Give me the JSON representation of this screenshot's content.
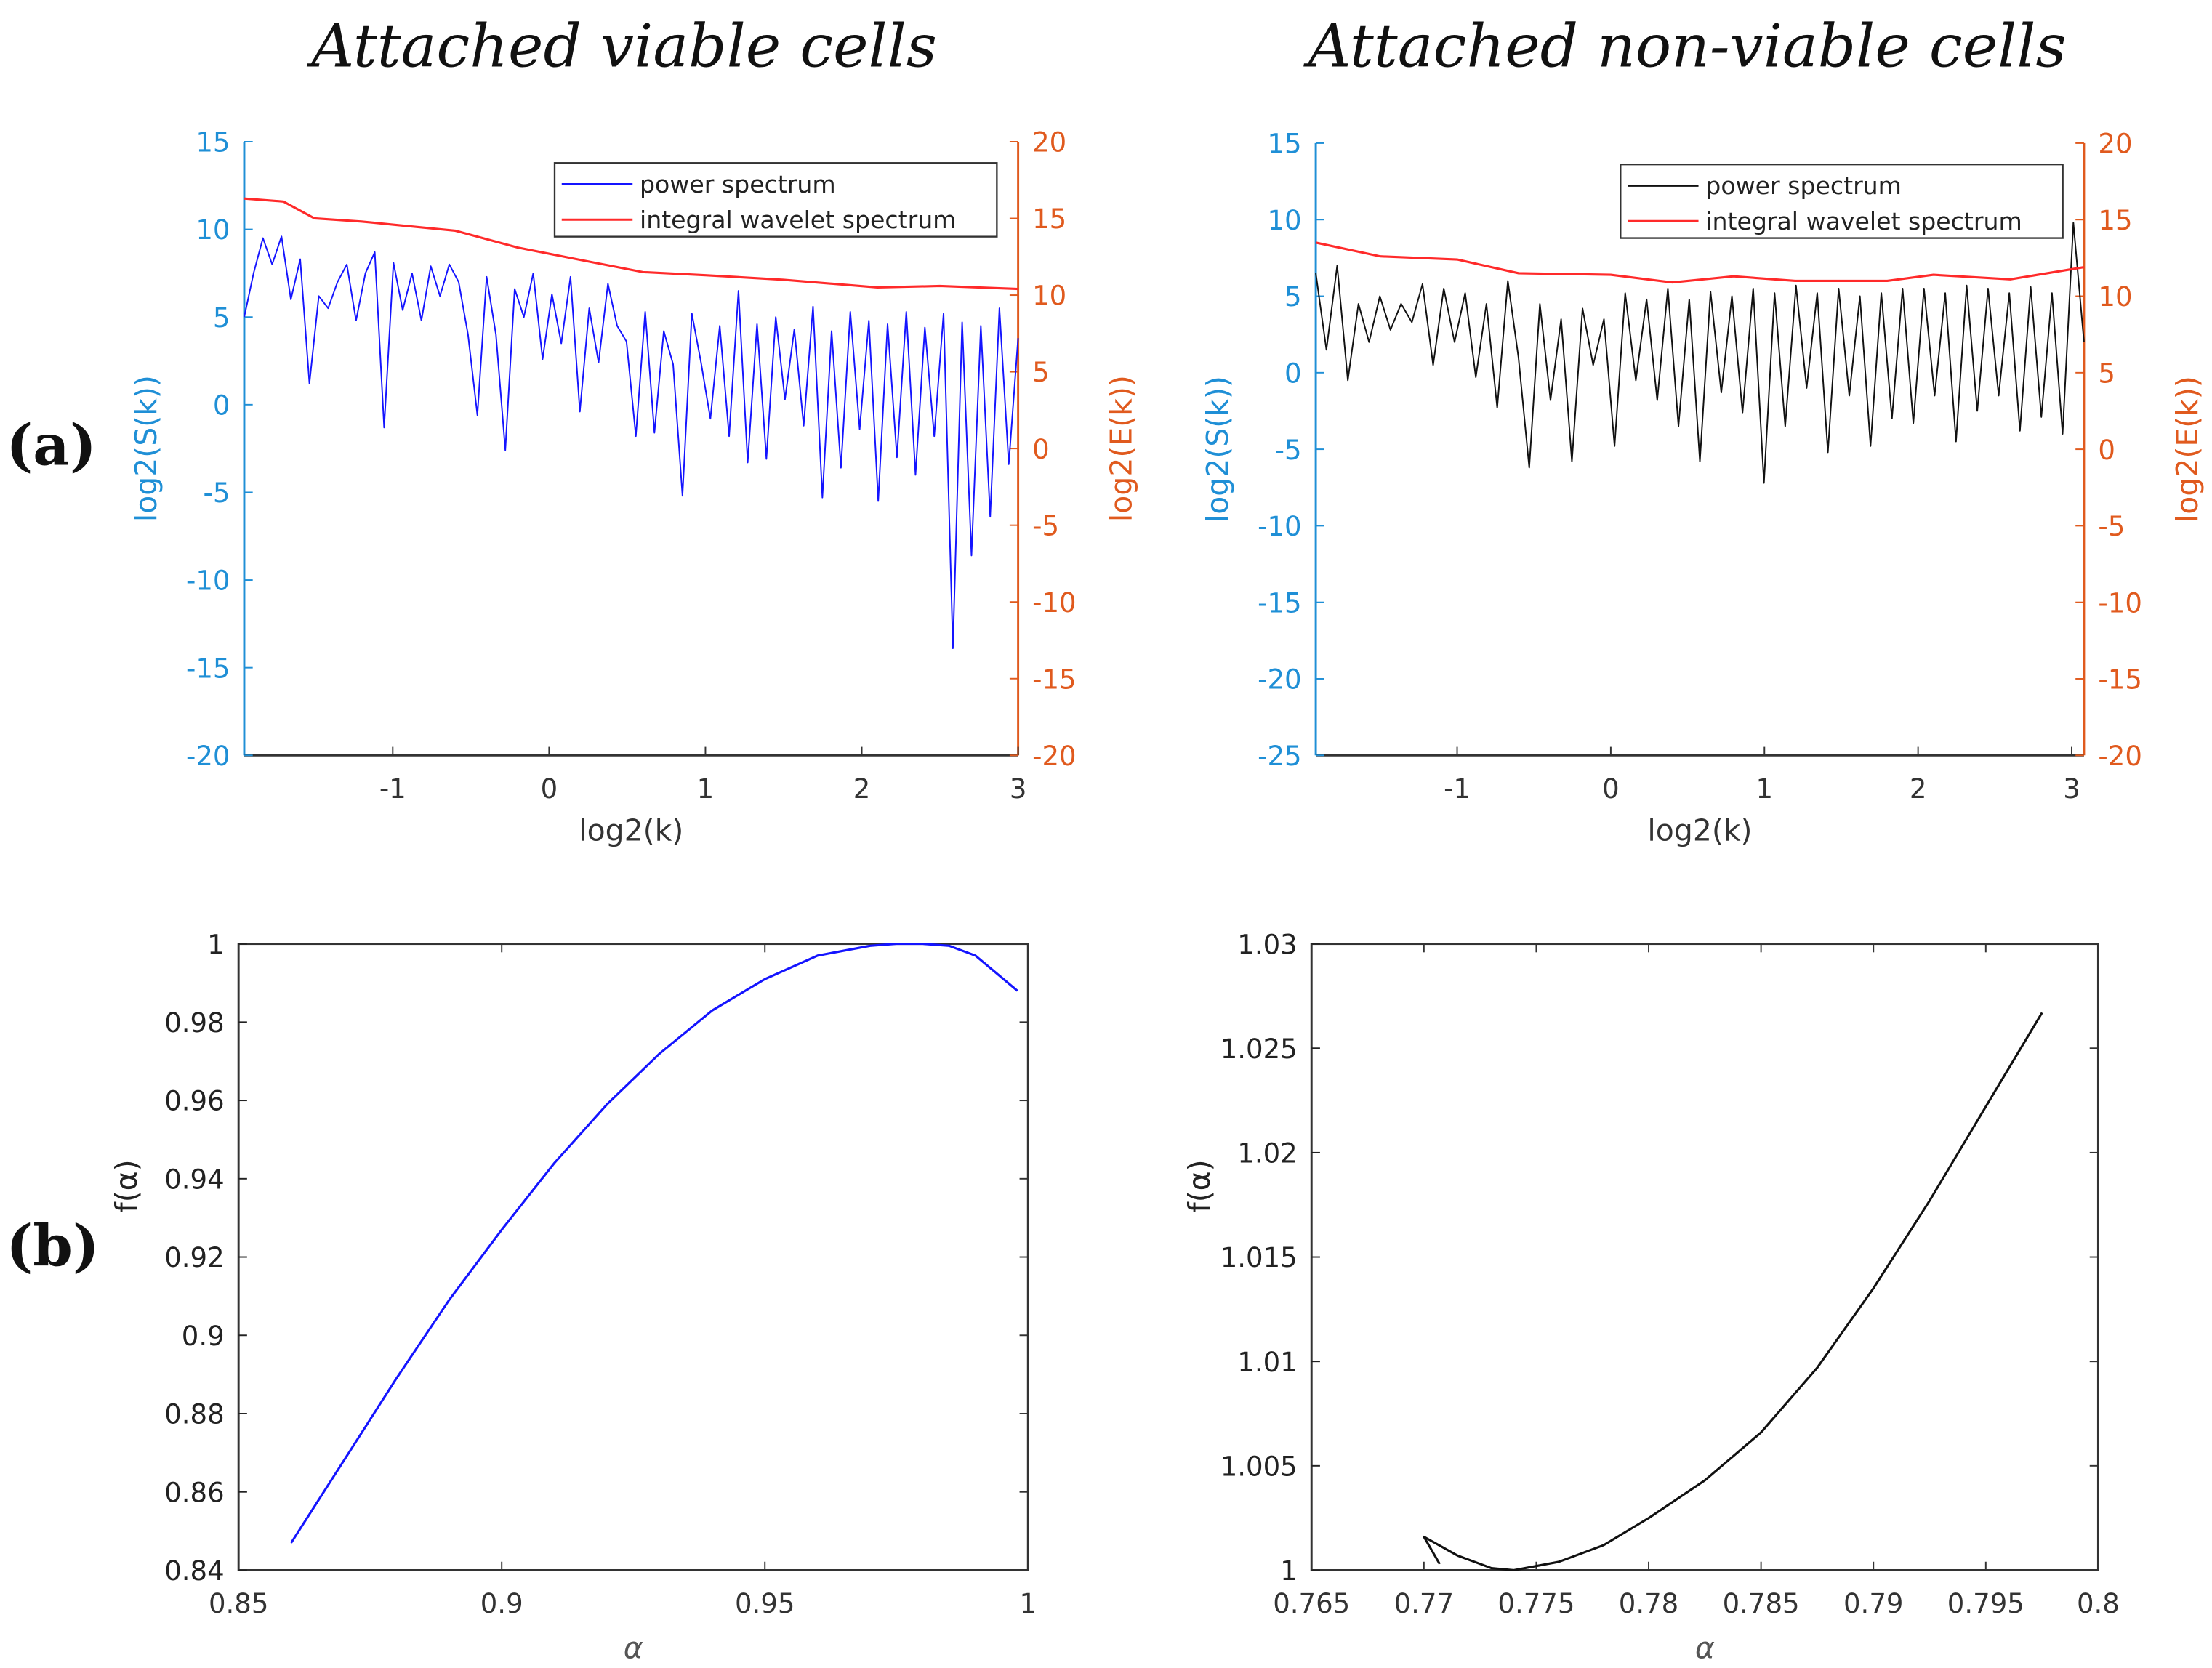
{
  "titles": {
    "left": "Attached viable cells",
    "right": "Attached non-viable cells"
  },
  "panel_labels": {
    "a": "(a)",
    "b": "(b)"
  },
  "colors": {
    "blue_axis": "#1f8fd6",
    "orange_axis": "#e05a1e",
    "blue_series": "#1414ff",
    "red_series": "#ff2a2a",
    "black": "#111111"
  },
  "chart_data": [
    {
      "id": "a-left",
      "type": "line",
      "xlabel": "log2(k)",
      "ylabel": "log2(S(k))",
      "ylabel_right": "log2(E(k))",
      "xlim": [
        -1.95,
        3
      ],
      "ylim": [
        -20,
        15
      ],
      "ylim_right": [
        -20,
        20
      ],
      "xticks": [
        -1,
        0,
        1,
        2,
        3
      ],
      "xtick_labels": [
        "-1",
        "0",
        "1",
        "2",
        "3"
      ],
      "yticks": [
        15,
        10,
        5,
        0,
        -5,
        -10,
        -15,
        -20
      ],
      "ytick_labels": [
        "15",
        "10",
        "5",
        "0",
        "-5",
        "-10",
        "-15",
        "-20"
      ],
      "yticks_right": [
        20,
        15,
        10,
        5,
        0,
        -5,
        -10,
        -15,
        -20
      ],
      "ytick_labels_right": [
        "20",
        "15",
        "10",
        "5",
        "0",
        "-5",
        "-10",
        "-15",
        "-20"
      ],
      "legend": {
        "placement": "top-right",
        "entries": [
          "power spectrum",
          "integral wavelet spectrum"
        ]
      },
      "series": [
        {
          "name": "power spectrum",
          "axis": "left",
          "color": "#1414ff",
          "values": [
            5,
            7.5,
            9.5,
            8,
            9.6,
            6,
            8.3,
            1.2,
            6.2,
            5.5,
            7,
            8,
            4.8,
            7.5,
            8.7,
            -1.3,
            8.1,
            5.4,
            7.5,
            4.8,
            7.9,
            6.2,
            8,
            7,
            4,
            -0.6,
            7.3,
            4,
            -2.6,
            6.6,
            5,
            7.5,
            2.6,
            6.3,
            3.5,
            7.3,
            -0.4,
            5.5,
            2.4,
            6.9,
            4.5,
            3.6,
            -1.8,
            5.3,
            -1.6,
            4.2,
            2.3,
            -5.2,
            5.2,
            2.4,
            -0.8,
            4.5,
            -1.8,
            6.5,
            -3.3,
            4.6,
            -3.1,
            5,
            0.3,
            4.3,
            -1.2,
            5.6,
            -5.3,
            4.2,
            -3.6,
            5.3,
            -1.4,
            4.8,
            -5.5,
            4.6,
            -3,
            5.3,
            -4,
            4.4,
            -1.8,
            5.2,
            -13.9,
            4.7,
            -8.6,
            4.5,
            -6.4,
            5.5,
            -3.4,
            3.8
          ]
        },
        {
          "name": "integral wavelet spectrum",
          "axis": "right",
          "color": "#ff2a2a",
          "x": [
            -1.95,
            -1.7,
            -1.5,
            -1.2,
            -1,
            -0.6,
            -0.2,
            0.2,
            0.6,
            1,
            1.5,
            2.1,
            2.5,
            3
          ],
          "values": [
            16.3,
            16.1,
            15,
            14.8,
            14.6,
            14.2,
            13.1,
            12.3,
            11.5,
            11.3,
            11.0,
            10.5,
            10.6,
            10.4
          ]
        }
      ]
    },
    {
      "id": "a-right",
      "type": "line",
      "xlabel": "log2(k)",
      "ylabel": "log2(S(k))",
      "ylabel_right": "log2(E(k))",
      "xlim": [
        -1.92,
        3.08
      ],
      "ylim": [
        -25,
        15
      ],
      "ylim_right": [
        -20,
        20
      ],
      "xticks": [
        -1,
        0,
        1,
        2,
        3
      ],
      "xtick_labels": [
        "-1",
        "0",
        "1",
        "2",
        "3"
      ],
      "yticks": [
        15,
        10,
        5,
        0,
        -5,
        -10,
        -15,
        -20,
        -25
      ],
      "ytick_labels": [
        "15",
        "10",
        "5",
        "0",
        "-5",
        "-10",
        "-15",
        "-20",
        "-25"
      ],
      "yticks_right": [
        20,
        15,
        10,
        5,
        0,
        -5,
        -10,
        -15,
        -20
      ],
      "ytick_labels_right": [
        "20",
        "15",
        "10",
        "5",
        "0",
        "-5",
        "-10",
        "-15",
        "-20"
      ],
      "legend": {
        "placement": "top-right",
        "entries": [
          "power spectrum",
          "integral wavelet spectrum"
        ]
      },
      "series": [
        {
          "name": "power spectrum",
          "axis": "left",
          "color": "#111111",
          "values": [
            6.5,
            1.5,
            7,
            -0.5,
            4.5,
            2,
            5,
            2.8,
            4.5,
            3.3,
            5.8,
            0.5,
            5.5,
            2,
            5.2,
            -0.3,
            4.5,
            -2.3,
            6,
            1,
            -6.2,
            4.5,
            -1.8,
            3.5,
            -5.8,
            4.2,
            0.5,
            3.5,
            -4.8,
            5.2,
            -0.5,
            4.8,
            -1.8,
            5.5,
            -3.5,
            4.8,
            -5.8,
            5.3,
            -1.3,
            5,
            -2.6,
            5.5,
            -7.2,
            5.2,
            -3.5,
            5.7,
            -1,
            5.2,
            -5.2,
            5.5,
            -1.5,
            5,
            -4.8,
            5.2,
            -3,
            5.5,
            -3.3,
            5.5,
            -1.5,
            5.2,
            -4.5,
            5.7,
            -2.5,
            5.5,
            -1.5,
            5.2,
            -3.8,
            5.6,
            -2.9,
            5.2,
            -4,
            9.8,
            2
          ]
        },
        {
          "name": "integral wavelet spectrum",
          "axis": "right",
          "color": "#ff2a2a",
          "x": [
            -1.92,
            -1.5,
            -1.0,
            -0.6,
            0,
            0.4,
            0.8,
            1.2,
            1.8,
            2.1,
            2.6,
            3.08
          ],
          "values": [
            13.5,
            12.6,
            12.4,
            11.5,
            11.4,
            10.9,
            11.3,
            11.0,
            11.0,
            11.4,
            11.1,
            11.9
          ]
        }
      ]
    },
    {
      "id": "b-left",
      "type": "line",
      "xlabel": "α",
      "ylabel": "f(α)",
      "xlim": [
        0.85,
        1
      ],
      "ylim": [
        0.84,
        1
      ],
      "xticks": [
        0.85,
        0.9,
        0.95,
        1
      ],
      "xtick_labels": [
        "0.85",
        "0.9",
        "0.95",
        "1"
      ],
      "yticks": [
        1,
        0.98,
        0.96,
        0.94,
        0.92,
        0.9,
        0.88,
        0.86,
        0.84
      ],
      "ytick_labels": [
        "1",
        "0.98",
        "0.96",
        "0.94",
        "0.92",
        "0.9",
        "0.88",
        "0.86",
        "0.84"
      ],
      "series": [
        {
          "name": "f(alpha)",
          "color": "#1414ff",
          "x": [
            0.86,
            0.87,
            0.88,
            0.89,
            0.9,
            0.91,
            0.92,
            0.93,
            0.94,
            0.95,
            0.96,
            0.97,
            0.975,
            0.98,
            0.985,
            0.99,
            0.998
          ],
          "values": [
            0.847,
            0.868,
            0.889,
            0.909,
            0.927,
            0.944,
            0.959,
            0.972,
            0.983,
            0.991,
            0.997,
            0.9995,
            1.0,
            1.0,
            0.9995,
            0.997,
            0.988
          ]
        }
      ]
    },
    {
      "id": "b-right",
      "type": "line",
      "xlabel": "α",
      "ylabel": "f(α)",
      "xlim": [
        0.765,
        0.8
      ],
      "ylim": [
        1,
        1.03
      ],
      "xticks": [
        0.765,
        0.77,
        0.775,
        0.78,
        0.785,
        0.79,
        0.795,
        0.8
      ],
      "xtick_labels": [
        "0.765",
        "0.77",
        "0.775",
        "0.78",
        "0.785",
        "0.79",
        "0.795",
        "0.8"
      ],
      "yticks": [
        1.03,
        1.025,
        1.02,
        1.015,
        1.01,
        1.005,
        1
      ],
      "ytick_labels": [
        "1.03",
        "1.025",
        "1.02",
        "1.015",
        "1.01",
        "1.005",
        "1"
      ],
      "series": [
        {
          "name": "f(alpha)",
          "color": "#111111",
          "x": [
            0.7707,
            0.77,
            0.7715,
            0.773,
            0.774,
            0.776,
            0.778,
            0.78,
            0.7825,
            0.785,
            0.7875,
            0.79,
            0.7925,
            0.795,
            0.7975
          ],
          "values": [
            1.0003,
            1.0016,
            1.0007,
            1.0001,
            1.0,
            1.0004,
            1.0012,
            1.0025,
            1.0043,
            1.0066,
            1.0097,
            1.0135,
            1.0177,
            1.0222,
            1.0267
          ]
        }
      ]
    }
  ]
}
